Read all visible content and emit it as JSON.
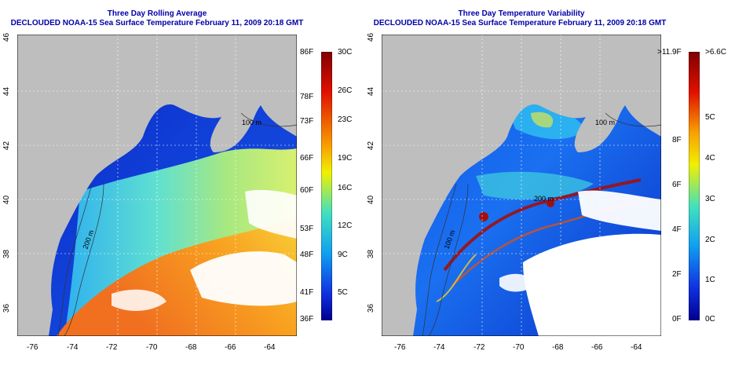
{
  "left_panel": {
    "title_line1": "Three Day Rolling Average",
    "title_line2": "DECLOUDED NOAA-15 Sea Surface Temperature February 11, 2009 20:18 GMT",
    "contour_label_a": "100 m",
    "contour_label_b": "200 m",
    "colorbar_f": [
      "86F",
      "78F",
      "73F",
      "66F",
      "60F",
      "53F",
      "48F",
      "41F",
      "36F"
    ],
    "colorbar_c": [
      "30C",
      "26C",
      "23C",
      "19C",
      "16C",
      "12C",
      "9C",
      "5C"
    ]
  },
  "right_panel": {
    "title_line1": "Three Day Temperature Variability",
    "title_line2": "DECLOUDED NOAA-15 Sea Surface Temperature February 11, 2009 20:18 GMT",
    "contour_label_a": "100 m",
    "contour_label_b": "200 m",
    "contour_label_c": "100 m",
    "colorbar_f": [
      ">11.9F",
      "8F",
      "6F",
      "4F",
      "2F",
      "0F"
    ],
    "colorbar_c": [
      ">6.6C",
      "5C",
      "4C",
      "3C",
      "2C",
      "1C",
      "0C"
    ]
  },
  "axes": {
    "lon_labels": [
      "-76",
      "-74",
      "-72",
      "-70",
      "-68",
      "-66",
      "-64"
    ],
    "lat_labels": [
      "46",
      "44",
      "42",
      "40",
      "38",
      "36"
    ]
  },
  "colors": {
    "title": "#0000a8",
    "land": "#bebebe",
    "cold": "#0a1fb4",
    "warm": "#f08020"
  }
}
